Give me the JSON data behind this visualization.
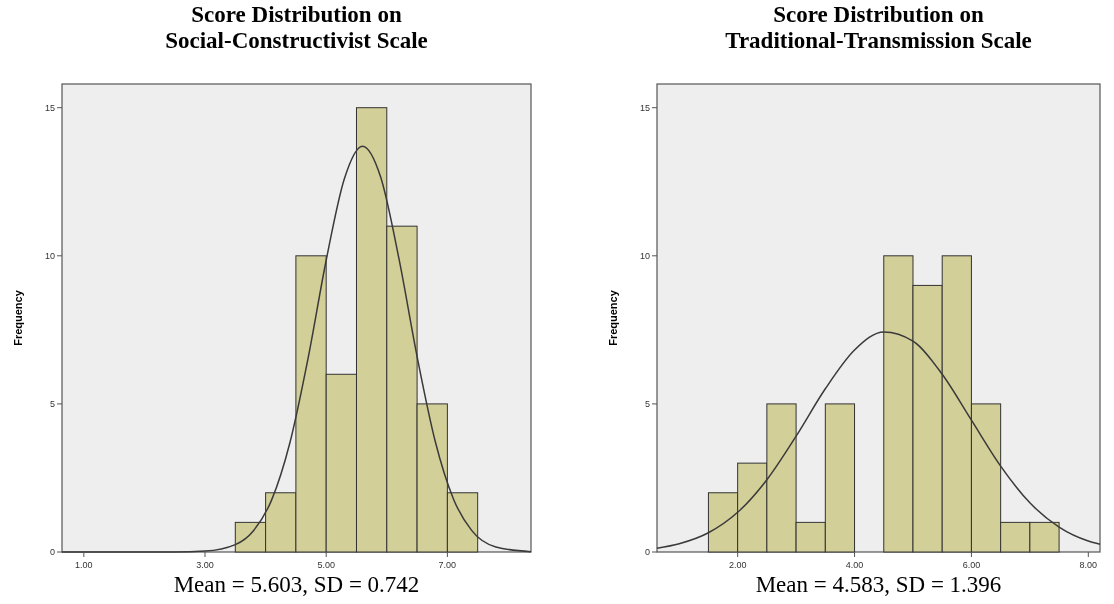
{
  "chart_data": [
    {
      "type": "histogram",
      "title": "Score Distribution on\nSocial-Constructivist Scale",
      "ylabel": "Frequency",
      "annotations": [
        "Mean = 5.603, SD = 0.742"
      ],
      "xlim": [
        0.64,
        8.38
      ],
      "xticks": [
        {
          "value": 1,
          "label": "1.00"
        },
        {
          "value": 3,
          "label": "3.00"
        },
        {
          "value": 5,
          "label": "5.00"
        },
        {
          "value": 7,
          "label": "7.00"
        }
      ],
      "ylim": [
        0,
        15.8
      ],
      "yticks": [
        0,
        5,
        10,
        15
      ],
      "series": [
        {
          "bins": [
            3.5,
            4,
            4.5,
            5,
            5.5,
            6,
            6.5,
            7,
            7.5
          ],
          "values": [
            1,
            2,
            10,
            6,
            15,
            11,
            5,
            2
          ],
          "color": "#d3cf98"
        },
        {
          "type": "line",
          "x": [
            0.64,
            2.5,
            3,
            3.5,
            3.8,
            4.1,
            4.4,
            4.7,
            5,
            5.3,
            5.6,
            5.9,
            6.2,
            6.5,
            6.8,
            7.1,
            7.4,
            7.8,
            8.38
          ],
          "values": [
            0,
            0,
            0.03,
            0.25,
            0.72,
            1.76,
            3.68,
            6.53,
            9.85,
            12.6,
            13.7,
            12.65,
            9.91,
            6.6,
            3.73,
            1.79,
            0.73,
            0.17,
            0.01
          ],
          "color": "#3a3a3a"
        }
      ]
    },
    {
      "type": "histogram",
      "title": "Score Distribution on\nTraditional-Transmission Scale",
      "ylabel": "Frequency",
      "annotations": [
        "Mean = 4.583, SD = 1.396"
      ],
      "xlim": [
        0.62,
        8.2
      ],
      "xticks": [
        {
          "value": 2,
          "label": "2.00"
        },
        {
          "value": 4,
          "label": "4.00"
        },
        {
          "value": 6,
          "label": "6.00"
        },
        {
          "value": 8,
          "label": "8.00"
        }
      ],
      "ylim": [
        0,
        15.8
      ],
      "yticks": [
        0,
        5,
        10,
        15
      ],
      "series": [
        {
          "bins": [
            1.5,
            2,
            2.5,
            3,
            3.5,
            4,
            4.5,
            5,
            5.5,
            6,
            6.5,
            7,
            7.5
          ],
          "values": [
            2,
            3,
            5,
            1,
            5,
            0,
            10,
            9,
            10,
            5,
            1,
            1
          ],
          "color": "#d3cf98"
        },
        {
          "type": "line",
          "x": [
            0.62,
            1,
            1.5,
            2,
            2.5,
            3,
            3.5,
            4,
            4.5,
            5,
            5.5,
            6,
            6.5,
            7,
            7.5,
            8,
            8.2
          ],
          "values": [
            0.13,
            0.28,
            0.65,
            1.34,
            2.44,
            3.91,
            5.51,
            6.82,
            7.43,
            7.12,
            6,
            4.45,
            2.9,
            1.66,
            0.84,
            0.37,
            0.26
          ],
          "color": "#3a3a3a"
        }
      ]
    }
  ]
}
